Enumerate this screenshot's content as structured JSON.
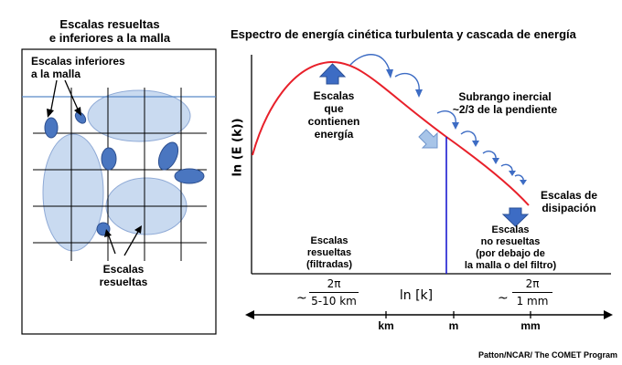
{
  "left_panel": {
    "title_line1": "Escalas resueltas",
    "title_line2": "e inferiores a la malla",
    "label_subgrid_line1": "Escalas inferiores",
    "label_subgrid_line2": "a la malla",
    "label_resolved_line1": "Escalas",
    "label_resolved_line2": "resueltas"
  },
  "right_panel": {
    "title": "Espectro de energía cinética turbulenta y cascada de energía",
    "y_axis_label": "ln (E (k))",
    "x_axis_label": "ln [k]",
    "energy_containing": [
      "Escalas",
      "que contienen",
      "energía"
    ],
    "inertial_subrange": [
      "Subrango inercial",
      "~2/3 de la pendiente"
    ],
    "dissipation": [
      "Escalas de",
      "disipación"
    ],
    "unresolved": [
      "Escalas",
      "no resueltas",
      "(por debajo de",
      "la malla o del filtro)"
    ],
    "resolved_filtered": [
      "Escalas",
      "resueltas",
      "(filtradas)"
    ],
    "left_fraction": {
      "prefix": "~",
      "numerator": "2π",
      "denominator": "5-10 km"
    },
    "right_fraction": {
      "prefix": "~",
      "numerator": "2π",
      "denominator": "1 mm"
    },
    "scale_units": [
      "km",
      "m",
      "mm"
    ]
  },
  "credit": "Patton/NCAR/ The COMET Program",
  "colors": {
    "ellipse_light": "#c9daf0",
    "ellipse_dark": "#4a76c0",
    "spectrum_curve": "#e8202a",
    "cutoff_line": "#1a1ad0",
    "arrow_blue": "#3d6cc4",
    "arrow_light": "#a7c4e8"
  }
}
